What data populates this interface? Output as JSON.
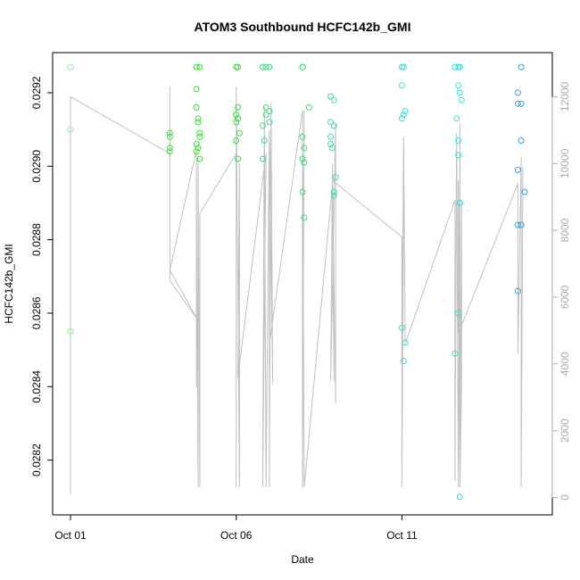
{
  "chart_data": {
    "type": "scatter",
    "title": "ATOM3 Southbound HCFC142b_GMI",
    "xlabel": "Date",
    "ylabel": "HCFC142b_GMI",
    "x_unit": "days",
    "xlim": [
      0,
      14
    ],
    "ylim": [
      0.02808,
      0.02928
    ],
    "x_ticks": [
      0,
      5,
      10
    ],
    "x_tick_labels": [
      "Oct 01",
      "Oct 06",
      "Oct 11"
    ],
    "y_ticks": [
      0.0282,
      0.0284,
      0.0286,
      0.0288,
      0.029,
      0.0292
    ],
    "y_tick_labels": [
      "0.0282",
      "0.0284",
      "0.0286",
      "0.0288",
      "0.0290",
      "0.0292"
    ],
    "right_axis": {
      "ylim": [
        -200,
        13000
      ],
      "ticks": [
        0,
        2000,
        4000,
        6000,
        8000,
        10000,
        12000
      ],
      "tick_labels": [
        "0",
        "2000",
        "4000",
        "6000",
        "8000",
        "10000",
        "12000"
      ],
      "color": "#aaaaaa"
    },
    "grid": false,
    "series": [
      {
        "color": "#90ee90",
        "points": [
          {
            "x": 0.0,
            "y": 0.02927
          },
          {
            "x": 0.0,
            "y": 0.0291
          },
          {
            "x": 0.0,
            "y": 0.02855
          }
        ]
      },
      {
        "color": "#33e033",
        "points": [
          {
            "x": 3.0,
            "y": 0.02909
          },
          {
            "x": 3.0,
            "y": 0.02908
          },
          {
            "x": 3.0,
            "y": 0.02905
          },
          {
            "x": 3.0,
            "y": 0.02904
          },
          {
            "x": 3.8,
            "y": 0.02927
          },
          {
            "x": 3.8,
            "y": 0.02921
          },
          {
            "x": 3.8,
            "y": 0.02916
          },
          {
            "x": 3.85,
            "y": 0.02913
          },
          {
            "x": 3.85,
            "y": 0.02912
          },
          {
            "x": 3.9,
            "y": 0.02909
          },
          {
            "x": 3.9,
            "y": 0.02908
          },
          {
            "x": 3.8,
            "y": 0.02906
          },
          {
            "x": 3.85,
            "y": 0.02905
          },
          {
            "x": 3.8,
            "y": 0.02904
          },
          {
            "x": 3.9,
            "y": 0.02902
          },
          {
            "x": 3.9,
            "y": 0.02927
          },
          {
            "x": 5.0,
            "y": 0.02927
          },
          {
            "x": 5.05,
            "y": 0.02927
          },
          {
            "x": 5.05,
            "y": 0.02916
          },
          {
            "x": 5.0,
            "y": 0.02914
          },
          {
            "x": 5.05,
            "y": 0.02913
          },
          {
            "x": 5.0,
            "y": 0.02912
          },
          {
            "x": 5.1,
            "y": 0.02909
          },
          {
            "x": 5.0,
            "y": 0.02907
          },
          {
            "x": 5.05,
            "y": 0.02902
          }
        ]
      },
      {
        "color": "#33e07a",
        "points": [
          {
            "x": 5.8,
            "y": 0.02927
          },
          {
            "x": 5.9,
            "y": 0.02927
          },
          {
            "x": 6.0,
            "y": 0.02927
          },
          {
            "x": 5.9,
            "y": 0.02916
          },
          {
            "x": 6.0,
            "y": 0.02915
          },
          {
            "x": 5.9,
            "y": 0.02914
          },
          {
            "x": 6.0,
            "y": 0.02912
          },
          {
            "x": 5.8,
            "y": 0.02911
          },
          {
            "x": 5.85,
            "y": 0.02907
          },
          {
            "x": 5.8,
            "y": 0.02902
          },
          {
            "x": 7.0,
            "y": 0.02927
          },
          {
            "x": 7.0,
            "y": 0.02927
          },
          {
            "x": 7.2,
            "y": 0.02916
          },
          {
            "x": 7.0,
            "y": 0.02908
          },
          {
            "x": 7.05,
            "y": 0.02905
          },
          {
            "x": 7.0,
            "y": 0.02902
          },
          {
            "x": 7.05,
            "y": 0.02901
          },
          {
            "x": 7.0,
            "y": 0.02893
          },
          {
            "x": 7.05,
            "y": 0.02886
          }
        ]
      },
      {
        "color": "#33e0a0",
        "points": [
          {
            "x": 7.85,
            "y": 0.02919
          },
          {
            "x": 7.95,
            "y": 0.02918
          },
          {
            "x": 7.85,
            "y": 0.02912
          },
          {
            "x": 7.95,
            "y": 0.02911
          },
          {
            "x": 7.85,
            "y": 0.02908
          },
          {
            "x": 7.85,
            "y": 0.02906
          },
          {
            "x": 7.9,
            "y": 0.02905
          },
          {
            "x": 8.0,
            "y": 0.02897
          },
          {
            "x": 7.95,
            "y": 0.02893
          },
          {
            "x": 7.95,
            "y": 0.02892
          }
        ]
      },
      {
        "color": "#33e0e0",
        "points": [
          {
            "x": 10.0,
            "y": 0.02927
          },
          {
            "x": 10.05,
            "y": 0.02927
          },
          {
            "x": 10.0,
            "y": 0.02922
          },
          {
            "x": 10.1,
            "y": 0.02915
          },
          {
            "x": 10.05,
            "y": 0.02914
          },
          {
            "x": 10.0,
            "y": 0.02913
          },
          {
            "x": 10.0,
            "y": 0.02856
          },
          {
            "x": 10.1,
            "y": 0.02852
          },
          {
            "x": 10.05,
            "y": 0.02847
          },
          {
            "x": 11.6,
            "y": 0.02927
          },
          {
            "x": 11.7,
            "y": 0.02927
          },
          {
            "x": 11.75,
            "y": 0.02927
          },
          {
            "x": 11.7,
            "y": 0.02922
          },
          {
            "x": 11.75,
            "y": 0.0292
          },
          {
            "x": 11.8,
            "y": 0.02918
          },
          {
            "x": 11.65,
            "y": 0.02913
          },
          {
            "x": 11.7,
            "y": 0.02907
          },
          {
            "x": 11.7,
            "y": 0.02903
          },
          {
            "x": 11.75,
            "y": 0.0289
          },
          {
            "x": 11.7,
            "y": 0.0286
          },
          {
            "x": 11.6,
            "y": 0.02849
          },
          {
            "x": 11.75,
            "y": 0.0281
          }
        ]
      },
      {
        "color": "#33a0e0",
        "points": [
          {
            "x": 13.6,
            "y": 0.02927
          },
          {
            "x": 13.5,
            "y": 0.0292
          },
          {
            "x": 13.5,
            "y": 0.02917
          },
          {
            "x": 13.6,
            "y": 0.02917
          },
          {
            "x": 13.6,
            "y": 0.02907
          },
          {
            "x": 13.5,
            "y": 0.02899
          },
          {
            "x": 13.7,
            "y": 0.02893
          },
          {
            "x": 13.5,
            "y": 0.02884
          },
          {
            "x": 13.6,
            "y": 0.02884
          },
          {
            "x": 13.5,
            "y": 0.02866
          }
        ]
      }
    ],
    "altitude_trace": {
      "color": "#c0c0c0",
      "description_axis": "right",
      "points": [
        [
          0.0,
          100
        ],
        [
          0.0,
          12000
        ],
        [
          3.0,
          10300
        ],
        [
          3.0,
          12300
        ],
        [
          3.0,
          6500
        ],
        [
          3.85,
          5300
        ],
        [
          3.0,
          6800
        ],
        [
          3.8,
          10400
        ],
        [
          3.8,
          3300
        ],
        [
          3.8,
          9700
        ],
        [
          3.85,
          300
        ],
        [
          3.85,
          10200
        ],
        [
          3.9,
          300
        ],
        [
          3.9,
          8500
        ],
        [
          5.0,
          10300
        ],
        [
          5.0,
          300
        ],
        [
          5.0,
          12300
        ],
        [
          5.1,
          300
        ],
        [
          5.1,
          10000
        ],
        [
          5.05,
          3600
        ],
        [
          5.9,
          10300
        ],
        [
          5.8,
          300
        ],
        [
          5.85,
          11700
        ],
        [
          5.9,
          300
        ],
        [
          6.0,
          11000
        ],
        [
          6.0,
          300
        ],
        [
          6.05,
          11800
        ],
        [
          6.1,
          3400
        ],
        [
          6.0,
          11000
        ],
        [
          6.0,
          4600
        ],
        [
          7.0,
          11600
        ],
        [
          7.0,
          300
        ],
        [
          7.05,
          11600
        ],
        [
          7.0,
          300
        ],
        [
          7.0,
          3500
        ],
        [
          7.0,
          11500
        ],
        [
          7.05,
          300
        ],
        [
          7.9,
          9300
        ],
        [
          7.95,
          3500
        ],
        [
          7.9,
          10000
        ],
        [
          8.0,
          2800
        ],
        [
          8.0,
          11200
        ],
        [
          7.85,
          3500
        ],
        [
          7.9,
          9500
        ],
        [
          10.0,
          7800
        ],
        [
          10.0,
          300
        ],
        [
          10.05,
          9000
        ],
        [
          10.0,
          3300
        ],
        [
          10.05,
          10800
        ],
        [
          10.1,
          4600
        ],
        [
          11.6,
          8900
        ],
        [
          11.6,
          500
        ],
        [
          11.65,
          10900
        ],
        [
          11.7,
          300
        ],
        [
          11.75,
          11200
        ],
        [
          11.75,
          300
        ],
        [
          11.8,
          3400
        ],
        [
          11.8,
          8900
        ],
        [
          11.75,
          700
        ],
        [
          11.7,
          9500
        ],
        [
          11.7,
          4900
        ],
        [
          13.5,
          9400
        ],
        [
          13.5,
          4300
        ],
        [
          13.6,
          10200
        ],
        [
          13.6,
          300
        ],
        [
          13.65,
          9900
        ]
      ]
    }
  }
}
